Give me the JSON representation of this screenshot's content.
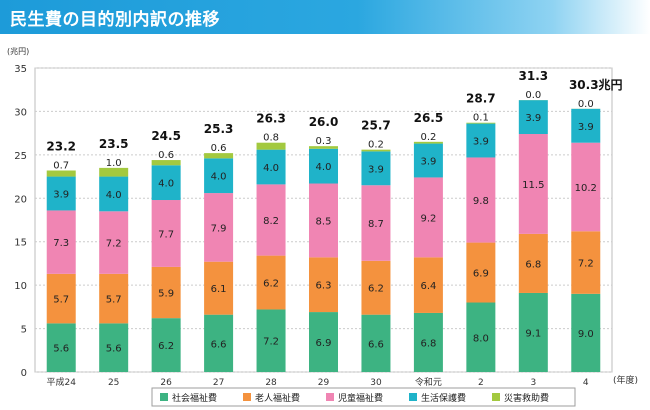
{
  "header": {
    "title": "民生費の目的別内訳の推移"
  },
  "chart_data": {
    "type": "bar",
    "stacked": true,
    "title": "民生費の目的別内訳の推移",
    "ylabel": "(兆円)",
    "xlabel": "(年度)",
    "ylim": [
      0,
      35
    ],
    "yticks": [
      0,
      5,
      10,
      15,
      20,
      25,
      30,
      35
    ],
    "grid": true,
    "legend_position": "bottom",
    "categories": [
      "平成24",
      "25",
      "26",
      "27",
      "28",
      "29",
      "30",
      "令和元",
      "2",
      "3",
      "4"
    ],
    "totals": [
      "23.2",
      "23.5",
      "24.5",
      "25.3",
      "26.3",
      "26.0",
      "25.7",
      "26.5",
      "28.7",
      "31.3",
      "30.3兆円"
    ],
    "series": [
      {
        "name": "社会福祉費",
        "color": "#3db382",
        "values": [
          5.6,
          5.6,
          6.2,
          6.6,
          7.2,
          6.9,
          6.6,
          6.8,
          8.0,
          9.1,
          9.0
        ]
      },
      {
        "name": "老人福祉費",
        "color": "#f4923e",
        "values": [
          5.7,
          5.7,
          5.9,
          6.1,
          6.2,
          6.3,
          6.2,
          6.4,
          6.9,
          6.8,
          7.2
        ]
      },
      {
        "name": "児童福祉費",
        "color": "#f085b3",
        "values": [
          7.3,
          7.2,
          7.7,
          7.9,
          8.2,
          8.5,
          8.7,
          9.2,
          9.8,
          11.5,
          10.2
        ]
      },
      {
        "name": "生活保護費",
        "color": "#1fb3c9",
        "values": [
          3.9,
          4.0,
          4.0,
          4.0,
          4.0,
          4.0,
          3.9,
          3.9,
          3.9,
          3.9,
          3.9
        ]
      },
      {
        "name": "災害救助費",
        "color": "#a3c93f",
        "values": [
          0.7,
          1.0,
          0.6,
          0.6,
          0.8,
          0.3,
          0.2,
          0.2,
          0.1,
          0.0,
          0.0
        ]
      }
    ]
  }
}
